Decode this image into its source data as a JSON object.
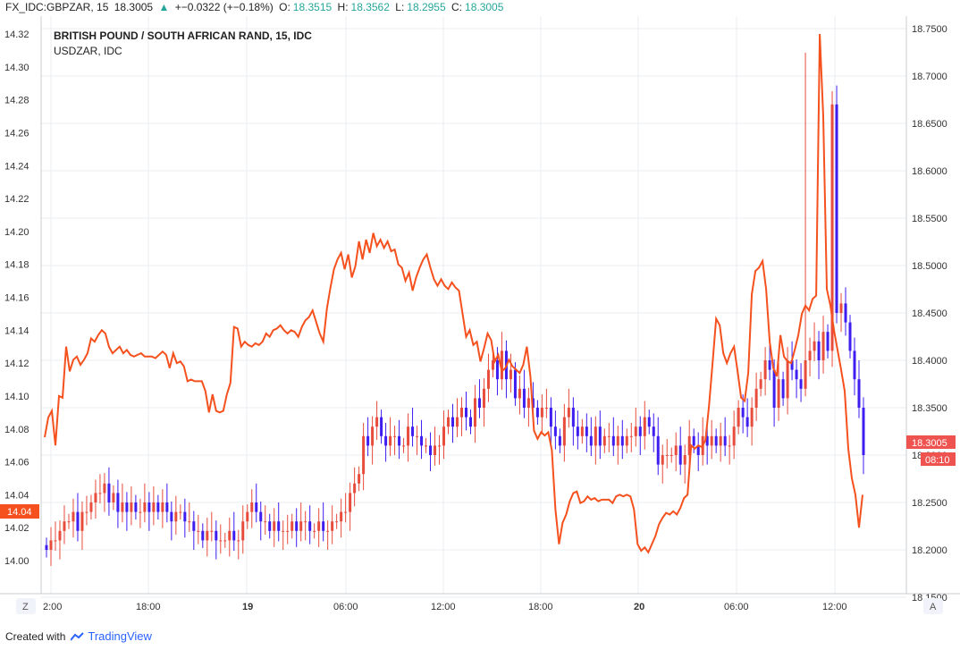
{
  "header": {
    "symbol": "FX_IDC:GBPZAR, 15",
    "price": "18.3005",
    "change_icon": "triangle-up-icon",
    "change": "+−0.0322 (+−0.18%)",
    "open_label": "O:",
    "open": "18.3515",
    "high_label": "H:",
    "high": "18.3562",
    "low_label": "L:",
    "low": "18.2955",
    "close_label": "C:",
    "close": "18.3005"
  },
  "legend": {
    "main_series": "BRITISH POUND / SOUTH AFRICAN RAND, 15, IDC",
    "overlay_series": "USDZAR, IDC"
  },
  "footer": {
    "created_with": "Created with",
    "brand": "TradingView"
  },
  "corner_buttons": {
    "left": "Z",
    "right": "A"
  },
  "price_tags": {
    "last_price": "18.3005",
    "countdown": "08:10",
    "left_value": "14.04"
  },
  "colors": {
    "up_candle": "#e74c3c",
    "down_candle": "#3d1df0",
    "overlay_line": "#f4511e",
    "price_tag": "#ef5350",
    "left_tag": "#f4511e",
    "grid": "#ebeef2"
  },
  "chart_data": {
    "type": "line",
    "x_ticks": [
      "2:00",
      "18:00",
      "19",
      "06:00",
      "12:00",
      "18:00",
      "20",
      "06:00",
      "12:00"
    ],
    "y_right_ticks": [
      "18.7500",
      "18.7000",
      "18.6500",
      "18.6000",
      "18.5500",
      "18.5000",
      "18.4500",
      "18.4000",
      "18.3500",
      "18.3000",
      "18.2500",
      "18.2000",
      "18.1500"
    ],
    "y_left_ticks": [
      "14.32",
      "14.30",
      "14.28",
      "14.26",
      "14.24",
      "14.22",
      "14.20",
      "14.18",
      "14.16",
      "14.14",
      "14.12",
      "14.10",
      "14.08",
      "14.06",
      "14.04",
      "14.02",
      "14.00"
    ],
    "y_right_range": [
      18.15,
      18.75
    ],
    "y_left_range": [
      14.0,
      14.32
    ],
    "series": [
      {
        "name": "BRITISH POUND / SOUTH AFRICAN RAND, 15, IDC",
        "axis": "right",
        "style": "candles",
        "values": [
          18.2,
          18.21,
          18.21,
          18.22,
          18.23,
          18.23,
          18.24,
          18.22,
          18.24,
          18.24,
          18.25,
          18.26,
          18.26,
          18.27,
          18.25,
          18.26,
          18.24,
          18.25,
          18.24,
          18.25,
          18.24,
          18.24,
          18.25,
          18.24,
          18.25,
          18.24,
          18.25,
          18.24,
          18.23,
          18.24,
          18.24,
          18.23,
          18.23,
          18.22,
          18.22,
          18.21,
          18.22,
          18.22,
          18.21,
          18.21,
          18.21,
          18.22,
          18.21,
          18.21,
          18.23,
          18.24,
          18.25,
          18.24,
          18.23,
          18.23,
          18.22,
          18.23,
          18.22,
          18.22,
          18.22,
          18.23,
          18.22,
          18.23,
          18.23,
          18.22,
          18.22,
          18.23,
          18.22,
          18.22,
          18.23,
          18.23,
          18.24,
          18.24,
          18.26,
          18.27,
          18.28,
          18.32,
          18.31,
          18.33,
          18.34,
          18.32,
          18.31,
          18.32,
          18.32,
          18.31,
          18.31,
          18.33,
          18.32,
          18.32,
          18.31,
          18.31,
          18.3,
          18.31,
          18.31,
          18.33,
          18.34,
          18.33,
          18.34,
          18.35,
          18.34,
          18.33,
          18.36,
          18.35,
          18.37,
          18.39,
          18.4,
          18.38,
          18.41,
          18.38,
          18.39,
          18.36,
          18.37,
          18.35,
          18.36,
          18.35,
          18.34,
          18.35,
          18.35,
          18.33,
          18.32,
          18.31,
          18.34,
          18.35,
          18.33,
          18.32,
          18.33,
          18.32,
          18.31,
          18.33,
          18.31,
          18.32,
          18.32,
          18.31,
          18.32,
          18.31,
          18.32,
          18.32,
          18.33,
          18.32,
          18.34,
          18.33,
          18.32,
          18.29,
          18.3,
          18.3,
          18.3,
          18.31,
          18.29,
          18.3,
          18.32,
          18.31,
          18.3,
          18.32,
          18.31,
          18.32,
          18.31,
          18.32,
          18.31,
          18.31,
          18.33,
          18.35,
          18.34,
          18.33,
          18.35,
          18.37,
          18.38,
          18.4,
          18.39,
          18.35,
          18.38,
          18.36,
          18.4,
          18.39,
          18.38,
          18.37,
          18.4,
          18.41,
          18.42,
          18.4,
          18.43,
          18.41,
          18.67,
          18.45,
          18.46,
          18.44,
          18.41,
          18.38,
          18.35,
          18.3
        ],
        "high": 18.7247,
        "low": 18.187
      },
      {
        "name": "USDZAR, IDC",
        "axis": "left",
        "style": "line",
        "values": [
          14.075,
          14.087,
          14.091,
          14.07,
          14.1,
          14.099,
          14.13,
          14.115,
          14.122,
          14.124,
          14.119,
          14.122,
          14.126,
          14.135,
          14.133,
          14.137,
          14.14,
          14.138,
          14.13,
          14.126,
          14.128,
          14.13,
          14.126,
          14.128,
          14.125,
          14.124,
          14.125,
          14.126,
          14.124,
          14.124,
          14.124,
          14.123,
          14.125,
          14.127,
          14.125,
          14.117,
          14.126,
          14.12,
          14.121,
          14.118,
          14.109,
          14.11,
          14.109,
          14.109,
          14.109,
          14.103,
          14.09,
          14.101,
          14.091,
          14.09,
          14.091,
          14.101,
          14.108,
          14.142,
          14.141,
          14.13,
          14.133,
          14.131,
          14.13,
          14.132,
          14.131,
          14.133,
          14.138,
          14.136,
          14.14,
          14.141,
          14.143,
          14.14,
          14.138,
          14.14,
          14.139,
          14.136,
          14.142,
          14.146,
          14.148,
          14.152,
          14.145,
          14.138,
          14.133,
          14.153,
          14.166,
          14.177,
          14.183,
          14.187,
          14.177,
          14.186,
          14.172,
          14.179,
          14.194,
          14.183,
          14.195,
          14.187,
          14.199,
          14.191,
          14.195,
          14.19,
          14.194,
          14.188,
          14.189,
          14.18,
          14.178,
          14.17,
          14.175,
          14.164,
          14.172,
          14.178,
          14.183,
          14.186,
          14.178,
          14.171,
          14.167,
          14.171,
          14.167,
          14.165,
          14.169,
          14.166,
          14.164,
          14.15,
          14.136,
          14.14,
          14.131,
          14.133,
          14.121,
          14.129,
          14.138,
          14.134,
          14.121,
          14.125,
          14.115,
          14.117,
          14.122,
          14.118,
          14.116,
          14.114,
          14.119,
          14.13,
          14.112,
          14.079,
          14.074,
          14.078,
          14.076,
          14.078,
          14.067,
          14.031,
          14.01,
          14.023,
          14.028,
          14.036,
          14.041,
          14.042,
          14.035,
          14.036,
          14.039,
          14.037,
          14.038,
          14.036,
          14.037,
          14.037,
          14.037,
          14.035,
          14.039,
          14.04,
          14.039,
          14.04,
          14.039,
          14.031,
          14.01,
          14.006,
          14.008,
          14.005,
          14.01,
          14.015,
          14.022,
          14.026,
          14.029,
          14.028,
          14.03,
          14.028,
          14.032,
          14.038,
          14.04,
          14.07,
          14.068,
          14.07,
          14.069,
          14.073,
          14.094,
          14.12,
          14.147,
          14.143,
          14.126,
          14.12,
          14.126,
          14.13,
          14.115,
          14.099,
          14.097,
          14.114,
          14.162,
          14.176,
          14.178,
          14.182,
          14.165,
          14.133,
          14.117,
          14.112,
          14.137,
          14.124,
          14.121,
          14.12,
          14.128,
          14.137,
          14.15,
          14.155,
          14.152,
          14.159,
          14.161,
          14.32,
          14.27,
          14.165,
          14.155,
          14.14,
          14.128,
          14.116,
          14.103,
          14.068,
          14.05,
          14.04,
          14.02,
          14.04
        ]
      }
    ]
  }
}
